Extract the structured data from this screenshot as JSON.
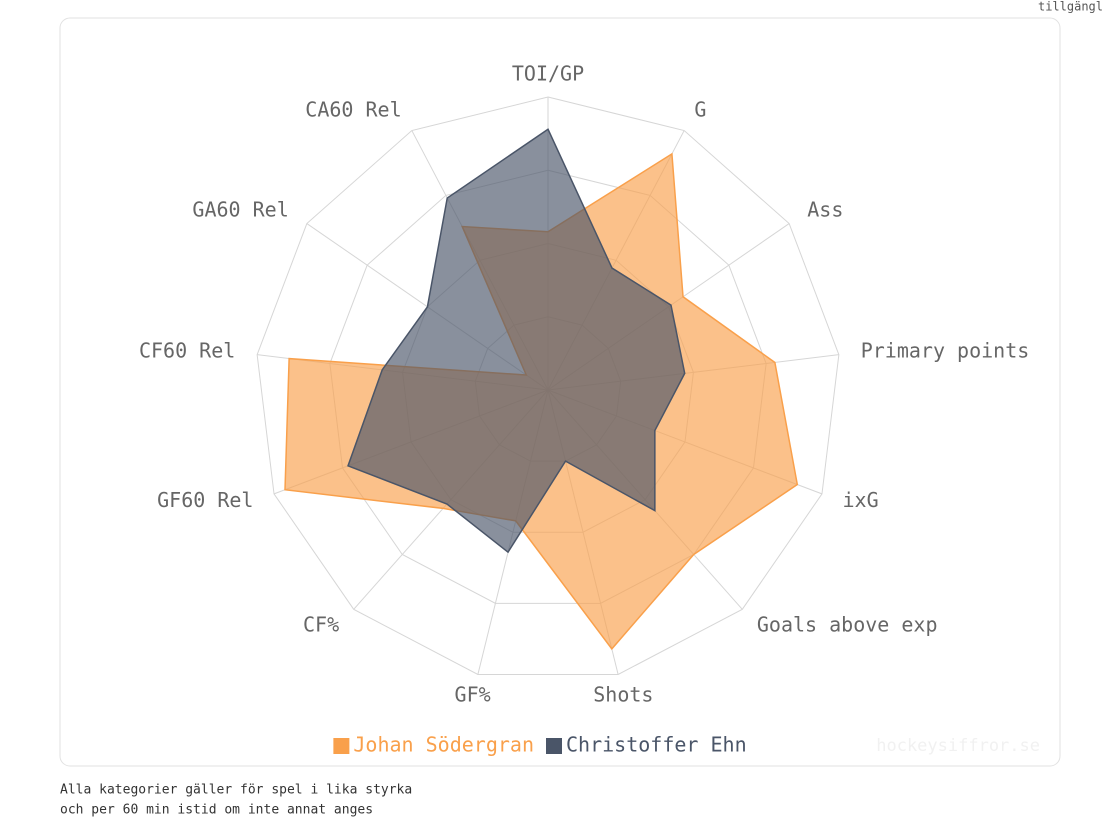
{
  "chart_data": {
    "type": "radar",
    "corner_text": "tillgängl",
    "categories": [
      "TOI/GP",
      "G",
      "Ass",
      "Primary points",
      "ixG",
      "Goals above exp",
      "Shots",
      "GF%",
      "CF%",
      "GF60 Rel",
      "CF60 Rel",
      "GA60 Rel",
      "CA60 Rel"
    ],
    "series": [
      {
        "name": "Johan Södergran",
        "color": "#f9a04b",
        "values": [
          54,
          91,
          56,
          78,
          91,
          75,
          91,
          46,
          54,
          96,
          89,
          9,
          63
        ]
      },
      {
        "name": "Christoffer Ehn",
        "color": "#4a5568",
        "values": [
          89,
          47,
          51,
          47,
          39,
          55,
          25,
          57,
          52,
          73,
          57,
          50,
          74
        ]
      }
    ],
    "rlim": [
      0,
      100
    ],
    "rticks": [
      25,
      50,
      75,
      100
    ],
    "grid": true,
    "legend": "bottom",
    "watermark": "hockeysiffror.se",
    "notes": [
      "Alla kategorier gäller för spel i lika styrka",
      "och per 60 min istid om inte annat anges"
    ]
  }
}
